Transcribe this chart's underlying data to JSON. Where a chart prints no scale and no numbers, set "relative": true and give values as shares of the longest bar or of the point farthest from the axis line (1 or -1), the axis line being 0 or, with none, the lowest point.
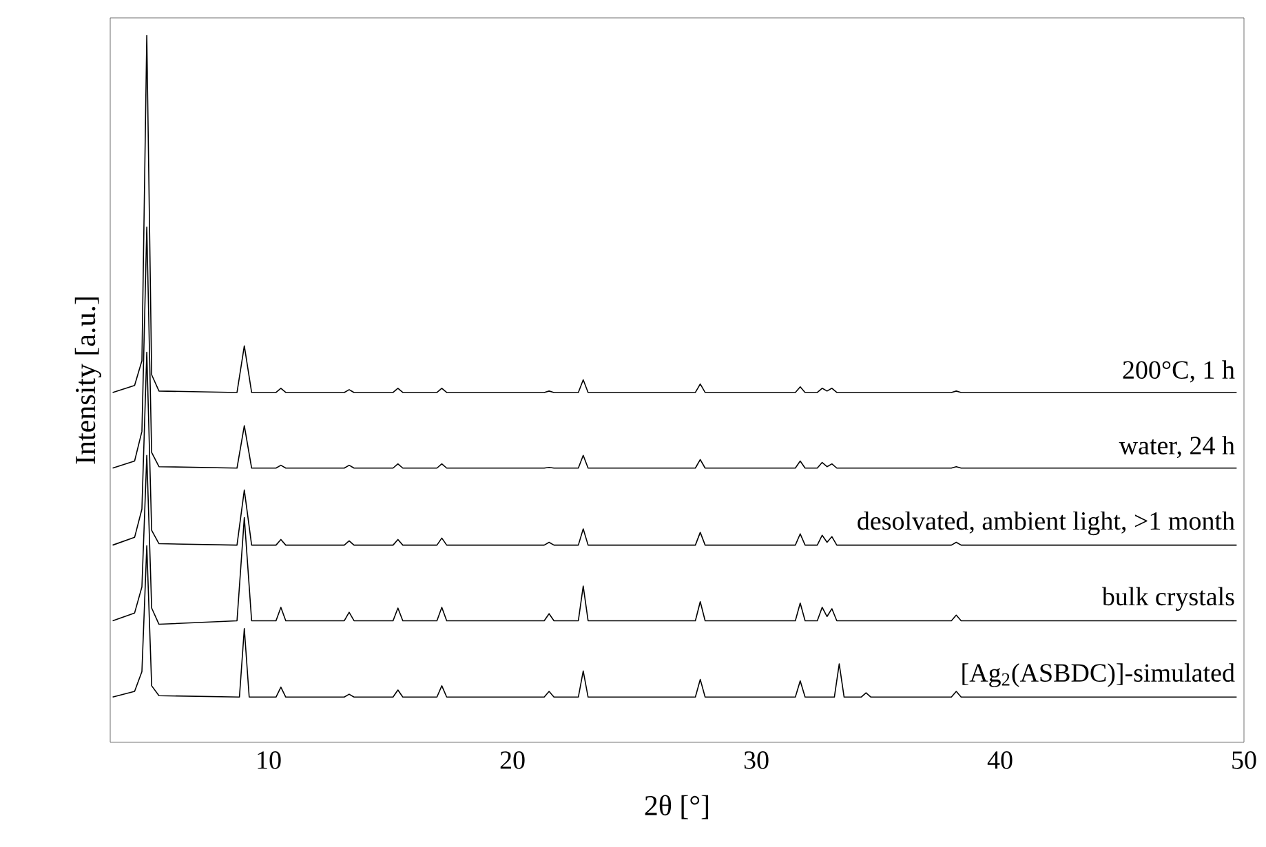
{
  "chart_data": {
    "type": "line",
    "relative": true,
    "xlabel": "2θ [°]",
    "ylabel": "Intensity [a.u.]",
    "xlim": [
      3.5,
      50
    ],
    "xticks": [
      10,
      20,
      30,
      40,
      50
    ],
    "series": [
      {
        "name": "200°C, 1 h",
        "color": "#000000",
        "x": [
          3.6,
          4.5,
          4.8,
          5.0,
          5.2,
          5.5,
          8.7,
          9.0,
          9.3,
          10.3,
          10.5,
          10.7,
          13.1,
          13.3,
          13.5,
          15.1,
          15.3,
          15.5,
          16.9,
          17.1,
          17.3,
          21.3,
          21.5,
          21.7,
          22.7,
          22.9,
          23.1,
          27.5,
          27.7,
          27.9,
          31.6,
          31.8,
          32.0,
          32.5,
          32.7,
          32.9,
          33.1,
          33.3,
          38.0,
          38.2,
          38.4,
          49.7
        ],
        "values": [
          0.495,
          0.505,
          0.54,
          1.0,
          0.52,
          0.497,
          0.495,
          0.561,
          0.495,
          0.495,
          0.501,
          0.495,
          0.495,
          0.499,
          0.495,
          0.495,
          0.501,
          0.495,
          0.495,
          0.501,
          0.495,
          0.495,
          0.497,
          0.495,
          0.495,
          0.513,
          0.495,
          0.495,
          0.507,
          0.495,
          0.495,
          0.503,
          0.495,
          0.495,
          0.501,
          0.497,
          0.501,
          0.495,
          0.495,
          0.497,
          0.495,
          0.495
        ]
      },
      {
        "name": "water, 24 h",
        "color": "#000000",
        "x": [
          3.6,
          4.5,
          4.8,
          5.0,
          5.2,
          5.5,
          8.7,
          9.0,
          9.3,
          10.3,
          10.5,
          10.7,
          13.1,
          13.3,
          13.5,
          15.1,
          15.3,
          15.5,
          16.9,
          17.1,
          17.3,
          21.3,
          21.5,
          21.7,
          22.7,
          22.9,
          23.1,
          27.5,
          27.7,
          27.9,
          31.6,
          31.8,
          32.0,
          32.5,
          32.7,
          32.9,
          33.1,
          33.3,
          38.0,
          38.2,
          38.4,
          49.7
        ],
        "values": [
          0.388,
          0.398,
          0.44,
          0.729,
          0.41,
          0.39,
          0.388,
          0.448,
          0.388,
          0.388,
          0.392,
          0.388,
          0.388,
          0.392,
          0.388,
          0.388,
          0.394,
          0.388,
          0.388,
          0.394,
          0.388,
          0.388,
          0.389,
          0.388,
          0.388,
          0.406,
          0.388,
          0.388,
          0.4,
          0.388,
          0.388,
          0.398,
          0.388,
          0.388,
          0.396,
          0.39,
          0.394,
          0.388,
          0.388,
          0.39,
          0.388,
          0.388
        ]
      },
      {
        "name": "desolvated, ambient light, >1 month",
        "color": "#000000",
        "x": [
          3.6,
          4.5,
          4.8,
          5.0,
          5.2,
          5.5,
          8.7,
          9.0,
          9.3,
          10.3,
          10.5,
          10.7,
          13.1,
          13.3,
          13.5,
          15.1,
          15.3,
          15.5,
          16.9,
          17.1,
          17.3,
          21.3,
          21.5,
          21.7,
          22.7,
          22.9,
          23.1,
          27.5,
          27.7,
          27.9,
          31.6,
          31.8,
          32.0,
          32.5,
          32.7,
          32.9,
          33.1,
          33.3,
          38.0,
          38.2,
          38.4,
          49.7
        ],
        "values": [
          0.279,
          0.29,
          0.33,
          0.552,
          0.3,
          0.281,
          0.279,
          0.357,
          0.279,
          0.279,
          0.287,
          0.279,
          0.279,
          0.285,
          0.279,
          0.279,
          0.287,
          0.279,
          0.279,
          0.289,
          0.279,
          0.279,
          0.283,
          0.279,
          0.279,
          0.302,
          0.279,
          0.279,
          0.297,
          0.279,
          0.279,
          0.295,
          0.279,
          0.279,
          0.293,
          0.283,
          0.291,
          0.279,
          0.279,
          0.283,
          0.279,
          0.279
        ]
      },
      {
        "name": "bulk crystals",
        "color": "#000000",
        "x": [
          3.6,
          4.5,
          4.8,
          5.0,
          5.2,
          5.5,
          8.7,
          9.0,
          9.3,
          10.3,
          10.5,
          10.7,
          13.1,
          13.3,
          13.5,
          15.1,
          15.3,
          15.5,
          16.9,
          17.1,
          17.3,
          21.3,
          21.5,
          21.7,
          22.7,
          22.9,
          23.1,
          27.5,
          27.7,
          27.9,
          31.6,
          31.8,
          32.0,
          32.5,
          32.7,
          32.9,
          33.1,
          33.3,
          38.0,
          38.2,
          38.4,
          49.7
        ],
        "values": [
          0.172,
          0.183,
          0.22,
          0.406,
          0.19,
          0.167,
          0.172,
          0.318,
          0.172,
          0.172,
          0.191,
          0.172,
          0.172,
          0.184,
          0.172,
          0.172,
          0.19,
          0.172,
          0.172,
          0.191,
          0.172,
          0.172,
          0.182,
          0.172,
          0.172,
          0.221,
          0.172,
          0.172,
          0.199,
          0.172,
          0.172,
          0.197,
          0.172,
          0.172,
          0.191,
          0.178,
          0.189,
          0.172,
          0.172,
          0.18,
          0.172,
          0.172
        ]
      },
      {
        "name": "[Ag$_{2}$(ASBDC)]-simulated",
        "color": "#000000",
        "x": [
          3.6,
          4.5,
          4.8,
          5.0,
          5.2,
          5.5,
          8.8,
          9.0,
          9.2,
          10.3,
          10.5,
          10.7,
          13.1,
          13.3,
          13.5,
          15.1,
          15.3,
          15.5,
          16.9,
          17.1,
          17.3,
          21.3,
          21.5,
          21.7,
          22.7,
          22.9,
          23.1,
          27.5,
          27.7,
          27.9,
          31.6,
          31.8,
          32.0,
          33.2,
          33.4,
          33.6,
          34.3,
          34.5,
          34.7,
          38.0,
          38.2,
          38.4,
          49.7
        ],
        "values": [
          0.064,
          0.072,
          0.1,
          0.278,
          0.08,
          0.066,
          0.064,
          0.161,
          0.064,
          0.064,
          0.078,
          0.064,
          0.064,
          0.068,
          0.064,
          0.064,
          0.074,
          0.064,
          0.064,
          0.08,
          0.064,
          0.064,
          0.072,
          0.064,
          0.064,
          0.101,
          0.064,
          0.064,
          0.089,
          0.064,
          0.064,
          0.087,
          0.064,
          0.064,
          0.111,
          0.064,
          0.064,
          0.07,
          0.064,
          0.064,
          0.072,
          0.064,
          0.064
        ]
      }
    ]
  }
}
